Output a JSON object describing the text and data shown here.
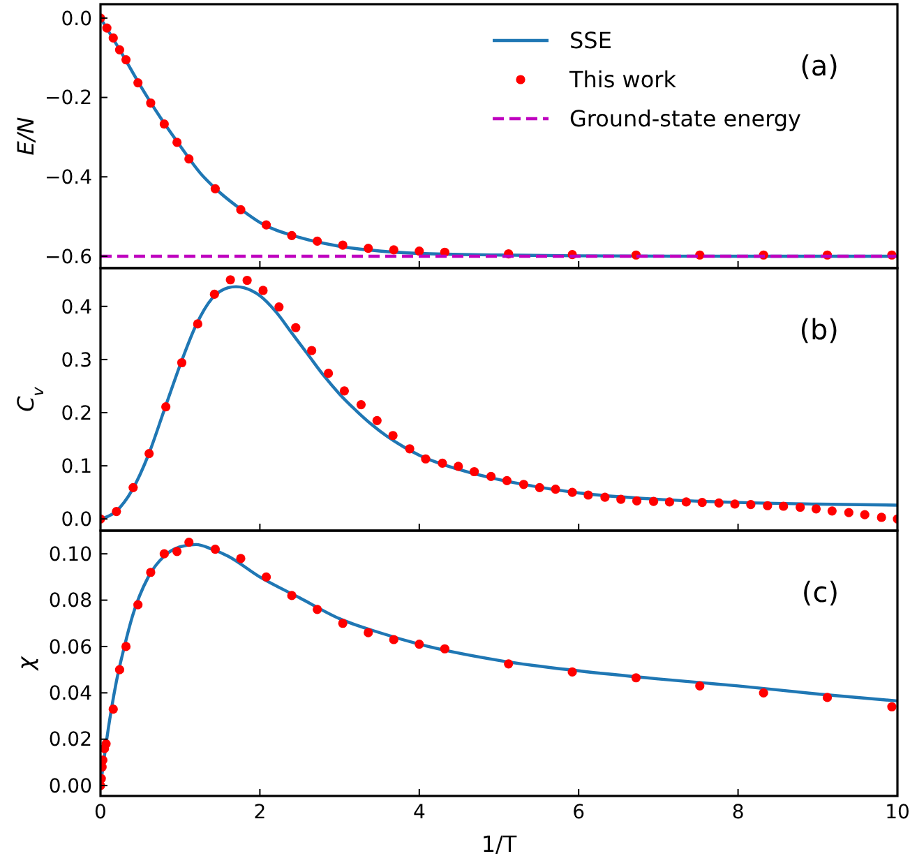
{
  "chart_data": [
    {
      "type": "line",
      "xlim": [
        0,
        10
      ],
      "xticks": [
        0,
        2,
        4,
        6,
        8,
        10
      ],
      "ylim": [
        -0.63,
        0.035
      ],
      "yticks": [
        {
          "value": 0,
          "label": "0.0"
        },
        {
          "value": -0.2,
          "label": "−0.2"
        },
        {
          "value": -0.4,
          "label": "−0.4"
        },
        {
          "value": -0.6,
          "label": "−0.6"
        }
      ],
      "ylabel": "E/N",
      "tick_labels": "y",
      "legend": "top right",
      "annotations": [
        "(a)"
      ],
      "series": [
        {
          "name": "SSE",
          "color": "#1f77b4",
          "line_style": "solid",
          "x": [
            0,
            0.25,
            0.5,
            0.75,
            1,
            1.25,
            1.5,
            1.75,
            2,
            2.5,
            3,
            3.5,
            4,
            5,
            6,
            8,
            10
          ],
          "values": [
            0,
            -0.083,
            -0.17,
            -0.25,
            -0.322,
            -0.39,
            -0.44,
            -0.48,
            -0.515,
            -0.553,
            -0.575,
            -0.587,
            -0.593,
            -0.597,
            -0.599,
            -0.6,
            -0.6
          ]
        },
        {
          "name": "This work",
          "type": "scatter",
          "color": "#ff0000",
          "marker": "circle",
          "x": [
            0,
            0.08,
            0.16,
            0.24,
            0.32,
            0.47,
            0.63,
            0.8,
            0.96,
            1.11,
            1.44,
            1.76,
            2.08,
            2.4,
            2.72,
            3.04,
            3.36,
            3.68,
            4,
            4.32,
            5.12,
            5.92,
            6.72,
            7.52,
            8.32,
            9.12,
            9.93
          ],
          "values": [
            0,
            -0.025,
            -0.05,
            -0.08,
            -0.105,
            -0.163,
            -0.214,
            -0.267,
            -0.313,
            -0.355,
            -0.43,
            -0.483,
            -0.521,
            -0.548,
            -0.562,
            -0.572,
            -0.58,
            -0.584,
            -0.587,
            -0.59,
            -0.594,
            -0.596,
            -0.597,
            -0.597,
            -0.597,
            -0.597,
            -0.597
          ]
        },
        {
          "name": "Ground-state energy",
          "color": "#bf00bf",
          "line_style": "dashed",
          "x": [
            0,
            10
          ],
          "values": [
            -0.6,
            -0.6
          ]
        }
      ]
    },
    {
      "type": "line",
      "xlim": [
        0,
        10
      ],
      "xticks": [
        0,
        2,
        4,
        6,
        8,
        10
      ],
      "ylim": [
        -0.022,
        0.472
      ],
      "yticks": [
        {
          "value": 0,
          "label": "0.0"
        },
        {
          "value": 0.1,
          "label": "0.1"
        },
        {
          "value": 0.2,
          "label": "0.2"
        },
        {
          "value": 0.3,
          "label": "0.3"
        },
        {
          "value": 0.4,
          "label": "0.4"
        }
      ],
      "ylabel": "C$_{v}$",
      "tick_labels": "y",
      "annotations": [
        "(b)"
      ],
      "series": [
        {
          "color": "#1f77b4",
          "line_style": "solid",
          "x": [
            0,
            0.2,
            0.4,
            0.6,
            0.8,
            1,
            1.2,
            1.4,
            1.6,
            1.7,
            1.8,
            2,
            2.2,
            2.4,
            2.6,
            2.8,
            3,
            3.2,
            3.4,
            3.6,
            3.8,
            4,
            4.5,
            5,
            5.5,
            6,
            7,
            8,
            9,
            10
          ],
          "values": [
            0,
            0.015,
            0.055,
            0.12,
            0.205,
            0.29,
            0.365,
            0.415,
            0.435,
            0.437,
            0.435,
            0.42,
            0.39,
            0.35,
            0.31,
            0.27,
            0.235,
            0.205,
            0.178,
            0.155,
            0.136,
            0.12,
            0.093,
            0.074,
            0.06,
            0.049,
            0.037,
            0.031,
            0.028,
            0.026
          ]
        },
        {
          "type": "scatter",
          "color": "#ff0000",
          "marker": "circle",
          "x": [
            0,
            0.2,
            0.41,
            0.61,
            0.82,
            1.02,
            1.22,
            1.43,
            1.63,
            1.84,
            2.04,
            2.24,
            2.45,
            2.65,
            2.86,
            3.06,
            3.27,
            3.47,
            3.67,
            3.88,
            4.08,
            4.29,
            4.49,
            4.69,
            4.9,
            5.1,
            5.31,
            5.51,
            5.71,
            5.92,
            6.12,
            6.33,
            6.53,
            6.73,
            6.94,
            7.14,
            7.35,
            7.55,
            7.76,
            7.96,
            8.16,
            8.37,
            8.57,
            8.78,
            8.98,
            9.18,
            9.39,
            9.59,
            9.8,
            10
          ],
          "values": [
            0,
            0.014,
            0.059,
            0.123,
            0.211,
            0.294,
            0.367,
            0.423,
            0.45,
            0.449,
            0.43,
            0.399,
            0.36,
            0.317,
            0.274,
            0.241,
            0.215,
            0.185,
            0.157,
            0.132,
            0.113,
            0.105,
            0.099,
            0.089,
            0.08,
            0.072,
            0.065,
            0.059,
            0.056,
            0.05,
            0.045,
            0.041,
            0.037,
            0.034,
            0.033,
            0.032,
            0.032,
            0.031,
            0.03,
            0.028,
            0.027,
            0.025,
            0.024,
            0.022,
            0.019,
            0.015,
            0.012,
            0.008,
            0.003,
            0
          ]
        }
      ]
    },
    {
      "type": "line",
      "xlim": [
        0,
        10
      ],
      "xticks": [
        0,
        2,
        4,
        6,
        8,
        10
      ],
      "ylim": [
        -0.0045,
        0.11
      ],
      "yticks": [
        {
          "value": 0,
          "label": "0.00"
        },
        {
          "value": 0.02,
          "label": "0.02"
        },
        {
          "value": 0.04,
          "label": "0.04"
        },
        {
          "value": 0.06,
          "label": "0.06"
        },
        {
          "value": 0.08,
          "label": "0.08"
        },
        {
          "value": 0.1,
          "label": "0.10"
        }
      ],
      "xlabel": "1/T",
      "ylabel": "χ",
      "annotations": [
        "(c)"
      ],
      "series": [
        {
          "color": "#1f77b4",
          "line_style": "solid",
          "x": [
            0,
            0.1,
            0.2,
            0.3,
            0.4,
            0.6,
            0.8,
            1,
            1.2,
            1.4,
            1.6,
            2,
            2.5,
            3,
            3.5,
            4,
            5,
            6,
            7,
            8,
            9,
            10
          ],
          "values": [
            0,
            0.025,
            0.045,
            0.06,
            0.073,
            0.09,
            0.099,
            0.103,
            0.104,
            0.102,
            0.099,
            0.09,
            0.081,
            0.072,
            0.066,
            0.061,
            0.054,
            0.0495,
            0.046,
            0.043,
            0.0395,
            0.0365
          ]
        },
        {
          "type": "scatter",
          "color": "#ff0000",
          "marker": "circle",
          "x": [
            0,
            0.01,
            0.02,
            0.03,
            0.05,
            0.07,
            0.16,
            0.24,
            0.32,
            0.47,
            0.63,
            0.8,
            0.96,
            1.11,
            1.44,
            1.76,
            2.08,
            2.4,
            2.72,
            3.04,
            3.36,
            3.68,
            4,
            4.32,
            5.12,
            5.92,
            6.72,
            7.52,
            8.32,
            9.12,
            9.93
          ],
          "values": [
            0,
            0.003,
            0.008,
            0.011,
            0.016,
            0.018,
            0.033,
            0.05,
            0.06,
            0.078,
            0.092,
            0.1,
            0.101,
            0.105,
            0.102,
            0.098,
            0.09,
            0.082,
            0.076,
            0.07,
            0.066,
            0.063,
            0.061,
            0.059,
            0.0525,
            0.049,
            0.0465,
            0.043,
            0.04,
            0.038,
            0.034
          ]
        }
      ]
    }
  ]
}
